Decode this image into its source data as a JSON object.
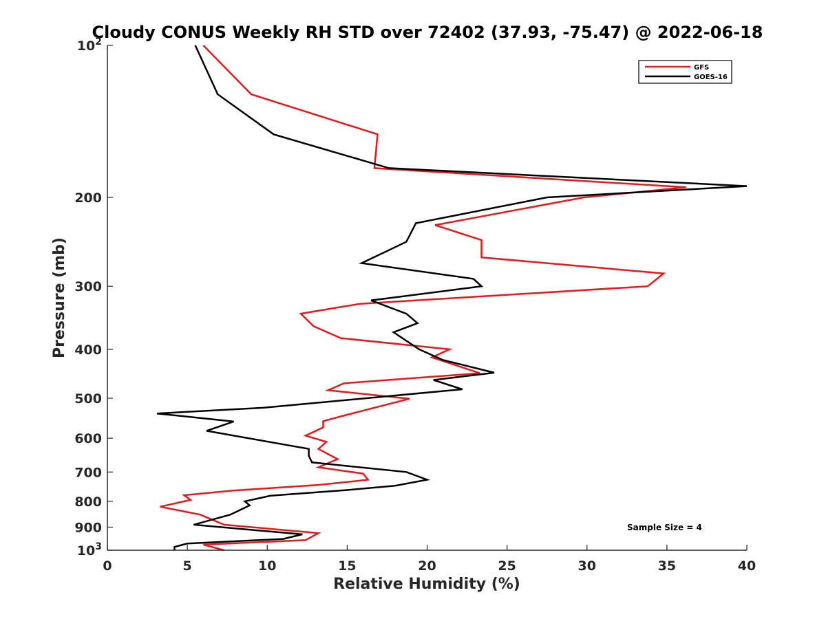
{
  "chart_data": {
    "type": "line",
    "title": "Cloudy CONUS Weekly RH STD over 72402 (37.93, -75.47) @ 2022-06-18",
    "xlabel": "Relative Humidity (%)",
    "ylabel": "Pressure (mb)",
    "xlim": [
      0,
      40
    ],
    "ylim": [
      1000,
      100
    ],
    "y_scale": "log",
    "y_reversed": true,
    "x_ticks": [
      0,
      5,
      10,
      15,
      20,
      25,
      30,
      35,
      40
    ],
    "x_tick_labels": [
      "0",
      "5",
      "10",
      "15",
      "20",
      "25",
      "30",
      "35",
      "40"
    ],
    "y_ticks": [
      100,
      200,
      300,
      400,
      500,
      600,
      700,
      800,
      900,
      1000
    ],
    "y_tick_labels": [
      "10²",
      "200",
      "300",
      "400",
      "500",
      "600",
      "700",
      "800",
      "900",
      "10³"
    ],
    "grid": false,
    "legend_position": "top-right",
    "annotation": "Sample Size = 4",
    "series": [
      {
        "name": "GFS",
        "color": "#e41a1c",
        "points": [
          [
            6.0,
            100
          ],
          [
            9.0,
            125
          ],
          [
            16.9,
            150
          ],
          [
            16.7,
            175
          ],
          [
            36.2,
            191
          ],
          [
            29.8,
            200
          ],
          [
            20.5,
            227
          ],
          [
            23.4,
            243
          ],
          [
            23.4,
            263
          ],
          [
            34.8,
            283
          ],
          [
            33.8,
            300
          ],
          [
            15.8,
            325
          ],
          [
            12.1,
            340
          ],
          [
            12.9,
            360
          ],
          [
            14.6,
            380
          ],
          [
            21.4,
            400
          ],
          [
            20.3,
            415
          ],
          [
            23.3,
            446
          ],
          [
            14.8,
            467
          ],
          [
            13.8,
            482
          ],
          [
            18.9,
            501
          ],
          [
            15.0,
            539
          ],
          [
            13.5,
            555
          ],
          [
            13.5,
            571
          ],
          [
            12.4,
            593
          ],
          [
            13.7,
            610
          ],
          [
            13.2,
            630
          ],
          [
            14.4,
            660
          ],
          [
            13.2,
            685
          ],
          [
            16.0,
            705
          ],
          [
            16.3,
            725
          ],
          [
            13.3,
            742
          ],
          [
            7.8,
            762
          ],
          [
            4.8,
            778
          ],
          [
            5.2,
            795
          ],
          [
            3.3,
            820
          ],
          [
            5.8,
            850
          ],
          [
            7.3,
            890
          ],
          [
            13.2,
            925
          ],
          [
            12.4,
            955
          ],
          [
            6.0,
            975
          ],
          [
            7.3,
            1000
          ]
        ]
      },
      {
        "name": "GOES-16",
        "color": "#000000",
        "points": [
          [
            5.5,
            100
          ],
          [
            6.9,
            125
          ],
          [
            10.4,
            150
          ],
          [
            17.6,
            175
          ],
          [
            40.0,
            190
          ],
          [
            27.5,
            200
          ],
          [
            19.3,
            225
          ],
          [
            18.7,
            245
          ],
          [
            15.9,
            270
          ],
          [
            22.9,
            290
          ],
          [
            23.4,
            300
          ],
          [
            16.5,
            320
          ],
          [
            18.7,
            340
          ],
          [
            19.4,
            355
          ],
          [
            17.9,
            370
          ],
          [
            19.5,
            400
          ],
          [
            21.0,
            420
          ],
          [
            24.2,
            445
          ],
          [
            20.4,
            460
          ],
          [
            22.2,
            480
          ],
          [
            9.8,
            522
          ],
          [
            3.1,
            536
          ],
          [
            7.9,
            556
          ],
          [
            6.2,
            580
          ],
          [
            12.6,
            630
          ],
          [
            12.6,
            650
          ],
          [
            12.8,
            670
          ],
          [
            18.7,
            700
          ],
          [
            20.0,
            725
          ],
          [
            18.0,
            745
          ],
          [
            15.0,
            760
          ],
          [
            10.2,
            780
          ],
          [
            8.6,
            800
          ],
          [
            8.9,
            815
          ],
          [
            7.7,
            850
          ],
          [
            5.4,
            890
          ],
          [
            12.2,
            930
          ],
          [
            11.0,
            950
          ],
          [
            5.0,
            970
          ],
          [
            4.2,
            985
          ],
          [
            4.2,
            1000
          ]
        ]
      }
    ]
  }
}
